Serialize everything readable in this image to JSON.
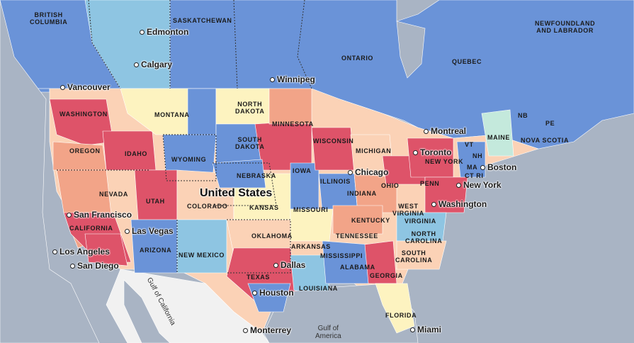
{
  "colors": {
    "ocean": "#a9b4c4",
    "land_other": "#f1f1f1",
    "canada_blue": "#6a93d8",
    "light_blue": "#8ec5e2",
    "red": "#de5369",
    "salmon": "#f2a488",
    "peach": "#fbd2b6",
    "cream": "#fdf3c0",
    "mint": "#c4e9dc"
  },
  "country_label": "United States",
  "regions": [
    {
      "id": "british-columbia",
      "text": "BRITISH\nCOLUMBIA"
    },
    {
      "id": "saskatchewan",
      "text": "SASKATCHEWAN"
    },
    {
      "id": "ontario",
      "text": "ONTARIO"
    },
    {
      "id": "quebec",
      "text": "QUEBEC"
    },
    {
      "id": "newfoundland",
      "text": "NEWFOUNDLAND\nAND LABRADOR"
    },
    {
      "id": "washington",
      "text": "WASHINGTON"
    },
    {
      "id": "montana",
      "text": "MONTANA"
    },
    {
      "id": "north-dakota",
      "text": "NORTH\nDAKOTA"
    },
    {
      "id": "minnesota",
      "text": "MINNESOTA"
    },
    {
      "id": "oregon",
      "text": "OREGON"
    },
    {
      "id": "idaho",
      "text": "IDAHO"
    },
    {
      "id": "wyoming",
      "text": "WYOMING"
    },
    {
      "id": "south-dakota",
      "text": "SOUTH\nDAKOTA"
    },
    {
      "id": "wisconsin",
      "text": "WISCONSIN"
    },
    {
      "id": "michigan",
      "text": "MICHIGAN"
    },
    {
      "id": "nebraska",
      "text": "NEBRASKA"
    },
    {
      "id": "iowa",
      "text": "IOWA"
    },
    {
      "id": "illinois",
      "text": "ILLINOIS"
    },
    {
      "id": "indiana",
      "text": "INDIANA"
    },
    {
      "id": "ohio",
      "text": "OHIO"
    },
    {
      "id": "nevada",
      "text": "NEVADA"
    },
    {
      "id": "utah",
      "text": "UTAH"
    },
    {
      "id": "colorado",
      "text": "COLORADO"
    },
    {
      "id": "kansas",
      "text": "KANSAS"
    },
    {
      "id": "missouri",
      "text": "MISSOURI"
    },
    {
      "id": "california",
      "text": "CALIFORNIA"
    },
    {
      "id": "arizona",
      "text": "ARIZONA"
    },
    {
      "id": "new-mexico",
      "text": "NEW MEXICO"
    },
    {
      "id": "oklahoma",
      "text": "OKLAHOMA"
    },
    {
      "id": "arkansas",
      "text": "ARKANSAS"
    },
    {
      "id": "tennessee",
      "text": "TENNESSEE"
    },
    {
      "id": "kentucky",
      "text": "KENTUCKY"
    },
    {
      "id": "west-virginia",
      "text": "WEST\nVIRGINIA"
    },
    {
      "id": "virginia",
      "text": "VIRGINIA"
    },
    {
      "id": "north-carolina",
      "text": "NORTH\nCAROLINA"
    },
    {
      "id": "south-carolina",
      "text": "SOUTH\nCAROLINA"
    },
    {
      "id": "mississippi",
      "text": "MISSISSIPPI"
    },
    {
      "id": "alabama",
      "text": "ALABAMA"
    },
    {
      "id": "georgia",
      "text": "GEORGIA"
    },
    {
      "id": "texas",
      "text": "TEXAS"
    },
    {
      "id": "louisiana",
      "text": "LOUISIANA"
    },
    {
      "id": "florida",
      "text": "FLORIDA"
    },
    {
      "id": "penn",
      "text": "PENN"
    },
    {
      "id": "new-york",
      "text": "NEW YORK"
    },
    {
      "id": "vt",
      "text": "VT"
    },
    {
      "id": "nh",
      "text": "NH"
    },
    {
      "id": "ma",
      "text": "MA"
    },
    {
      "id": "ct-ri",
      "text": "CT RI"
    },
    {
      "id": "maine",
      "text": "MAINE"
    },
    {
      "id": "nb",
      "text": "NB"
    },
    {
      "id": "pe",
      "text": "PE"
    },
    {
      "id": "nova-scotia",
      "text": "NOVA SCOTIA"
    }
  ],
  "cities": [
    {
      "id": "edmonton",
      "text": "Edmonton"
    },
    {
      "id": "calgary",
      "text": "Calgary"
    },
    {
      "id": "vancouver",
      "text": "Vancouver"
    },
    {
      "id": "winnipeg",
      "text": "Winnipeg"
    },
    {
      "id": "montreal",
      "text": "Montreal"
    },
    {
      "id": "toronto",
      "text": "Toronto"
    },
    {
      "id": "boston",
      "text": "Boston"
    },
    {
      "id": "chicago",
      "text": "Chicago"
    },
    {
      "id": "new-york-city",
      "text": "New York"
    },
    {
      "id": "washington-dc",
      "text": "Washington"
    },
    {
      "id": "san-francisco",
      "text": "San Francisco"
    },
    {
      "id": "las-vegas",
      "text": "Las Vegas"
    },
    {
      "id": "los-angeles",
      "text": "Los Angeles"
    },
    {
      "id": "san-diego",
      "text": "San Diego"
    },
    {
      "id": "dallas",
      "text": "Dallas"
    },
    {
      "id": "houston",
      "text": "Houston"
    },
    {
      "id": "monterrey",
      "text": "Monterrey"
    },
    {
      "id": "miami",
      "text": "Miami"
    }
  ],
  "water_labels": [
    {
      "id": "gulf-of-america",
      "text": "Gulf of\nAmerica"
    },
    {
      "id": "gulf-of-california",
      "text": "Gulf of California"
    }
  ]
}
